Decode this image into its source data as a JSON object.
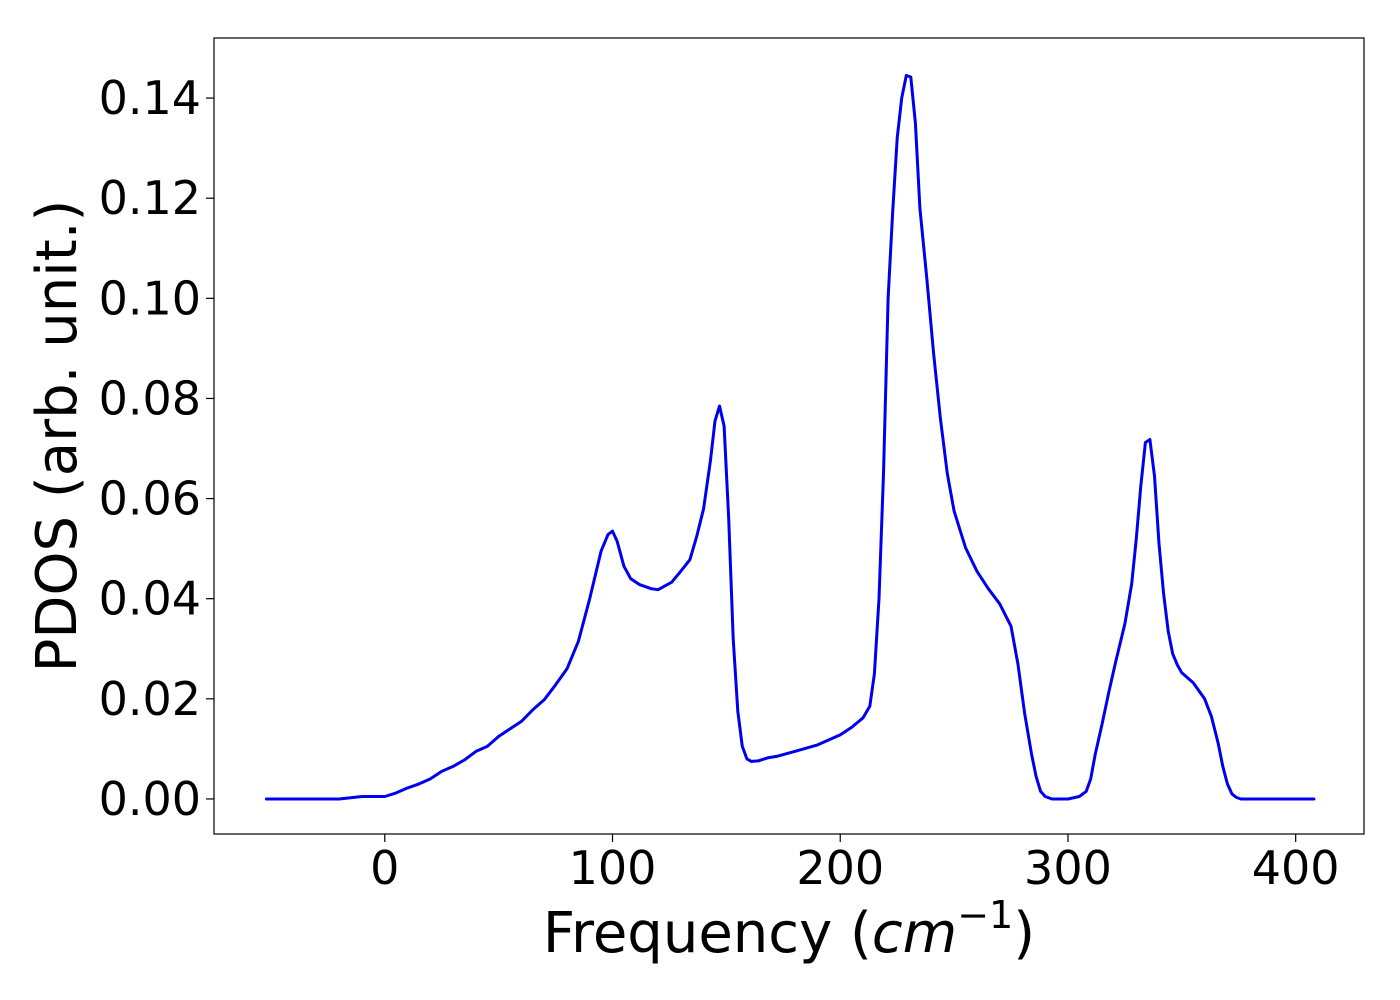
{
  "chart_data": {
    "type": "line",
    "title": "",
    "xlabel_main": "Frequency (",
    "xlabel_var": "cm",
    "xlabel_sup": "−1",
    "xlabel_close": ")",
    "ylabel": "PDOS (arb. unit.)",
    "xlim": [
      -75,
      430
    ],
    "ylim": [
      -0.007,
      0.152
    ],
    "xticks": [
      0,
      100,
      200,
      300,
      400
    ],
    "xtick_labels": [
      "0",
      "100",
      "200",
      "300",
      "400"
    ],
    "yticks": [
      0.0,
      0.02,
      0.04,
      0.06,
      0.08,
      0.1,
      0.12,
      0.14
    ],
    "ytick_labels": [
      "0.00",
      "0.02",
      "0.04",
      "0.06",
      "0.08",
      "0.10",
      "0.12",
      "0.14"
    ],
    "grid": false,
    "legend": "none",
    "series": [
      {
        "color": "#0000ee",
        "x": [
          -52,
          -40,
          -30,
          -20,
          -10,
          0,
          5,
          10,
          15,
          20,
          25,
          30,
          35,
          40,
          45,
          50,
          55,
          60,
          65,
          70,
          75,
          80,
          85,
          90,
          95,
          98,
          100,
          102,
          105,
          108,
          112,
          117,
          120,
          126,
          130,
          134,
          137,
          140,
          143,
          145,
          147,
          149,
          151,
          153,
          155,
          157,
          159,
          161,
          164,
          168,
          172,
          180,
          190,
          200,
          205,
          210,
          213,
          215,
          217,
          219,
          221,
          223,
          225,
          227,
          229,
          231,
          233,
          235,
          238,
          241,
          244,
          247,
          250,
          255,
          260,
          265,
          270,
          275,
          278,
          281,
          284,
          286,
          288,
          290,
          293,
          300,
          305,
          308,
          310,
          312,
          315,
          318,
          321,
          325,
          328,
          330,
          332,
          334,
          336,
          338,
          340,
          342,
          344,
          346,
          348,
          350,
          355,
          360,
          363,
          366,
          368,
          370,
          372,
          374,
          376,
          380,
          390,
          408
        ],
        "y": [
          0.0,
          0.0,
          0.0,
          0.0,
          0.0005,
          0.0005,
          0.0012,
          0.0022,
          0.003,
          0.004,
          0.0055,
          0.0065,
          0.0078,
          0.0095,
          0.0105,
          0.0125,
          0.014,
          0.0155,
          0.0178,
          0.0198,
          0.0228,
          0.026,
          0.0315,
          0.04,
          0.0495,
          0.0528,
          0.0535,
          0.0515,
          0.0465,
          0.044,
          0.0428,
          0.042,
          0.0418,
          0.0433,
          0.0455,
          0.0478,
          0.0525,
          0.058,
          0.0675,
          0.0755,
          0.0785,
          0.0745,
          0.056,
          0.032,
          0.0175,
          0.0105,
          0.008,
          0.0075,
          0.0076,
          0.0082,
          0.0085,
          0.0095,
          0.0108,
          0.0128,
          0.0143,
          0.0162,
          0.0185,
          0.025,
          0.04,
          0.065,
          0.1,
          0.117,
          0.132,
          0.14,
          0.1445,
          0.1442,
          0.135,
          0.118,
          0.104,
          0.089,
          0.076,
          0.065,
          0.0575,
          0.0502,
          0.0455,
          0.042,
          0.039,
          0.0345,
          0.027,
          0.017,
          0.009,
          0.0045,
          0.0015,
          0.0005,
          0.0,
          0.0,
          0.0005,
          0.0015,
          0.004,
          0.009,
          0.015,
          0.0215,
          0.0275,
          0.035,
          0.043,
          0.052,
          0.0625,
          0.0712,
          0.0718,
          0.0645,
          0.051,
          0.041,
          0.0335,
          0.029,
          0.0268,
          0.0252,
          0.0232,
          0.02,
          0.0165,
          0.011,
          0.0065,
          0.003,
          0.001,
          0.0003,
          0.0,
          0.0,
          0.0,
          0.0
        ]
      }
    ]
  }
}
